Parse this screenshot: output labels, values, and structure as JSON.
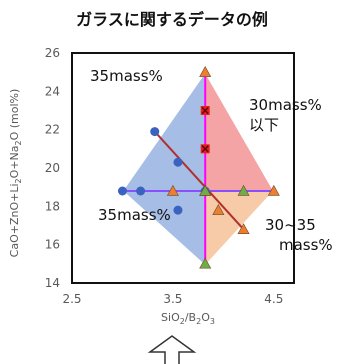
{
  "chart_data": {
    "type": "scatter",
    "title": "ガラスに関するデータの例",
    "xlabel": "SiO2/B2O3",
    "ylabel": "CaO+ZnO+Li2O+Na2O (mol%)",
    "xlim": [
      2.5,
      4.7
    ],
    "ylim": [
      14,
      26
    ],
    "x_ticks": [
      "2.5",
      "3.5",
      "4.5"
    ],
    "y_ticks": [
      "14",
      "16",
      "18",
      "20",
      "22",
      "24",
      "26"
    ],
    "grid": false,
    "annotations": [
      {
        "lines": [
          "35mass%"
        ]
      },
      {
        "lines": [
          "30mass%",
          "以下"
        ]
      },
      {
        "lines": [
          "35mass%"
        ]
      },
      {
        "lines": [
          "30~35",
          "mass%"
        ]
      }
    ],
    "regions": [
      {
        "color": "#a6bde6",
        "polygon": [
          [
            3.82,
            25.0
          ],
          [
            3.82,
            18.8
          ],
          [
            3.82,
            14.9
          ],
          [
            3.0,
            18.8
          ]
        ]
      },
      {
        "color": "#f4a4a4",
        "polygon": [
          [
            3.82,
            25.0
          ],
          [
            4.5,
            18.8
          ],
          [
            3.82,
            18.8
          ]
        ]
      },
      {
        "color": "#f7cba8",
        "polygon": [
          [
            3.82,
            18.8
          ],
          [
            4.5,
            18.8
          ],
          [
            3.82,
            14.9
          ]
        ]
      }
    ],
    "series": [
      {
        "marker": "circle",
        "color": "#3a63c0",
        "line_color": "#6a5acd",
        "points": [
          [
            3.0,
            18.8
          ],
          [
            3.18,
            18.8
          ],
          [
            3.32,
            21.9
          ],
          [
            3.55,
            20.3
          ],
          [
            3.55,
            17.8
          ],
          [
            3.82,
            18.8
          ]
        ]
      },
      {
        "marker": "triangle",
        "color": "#ed7d31",
        "line_color": "#a63a3a",
        "points": [
          [
            3.82,
            25.0
          ],
          [
            3.82,
            18.8
          ],
          [
            3.95,
            17.8
          ],
          [
            4.2,
            16.8
          ],
          [
            3.5,
            18.8
          ],
          [
            4.5,
            18.8
          ]
        ]
      },
      {
        "marker": "triangle",
        "color": "#70ad47",
        "line_color": "#ff00ff",
        "points": [
          [
            3.82,
            18.8
          ],
          [
            4.2,
            18.8
          ],
          [
            3.82,
            15.0
          ]
        ]
      },
      {
        "marker": "square-x",
        "color": "#e02020",
        "points": [
          [
            3.82,
            23.0
          ],
          [
            3.82,
            21.0
          ]
        ]
      }
    ],
    "lines": [
      {
        "color": "#ff00ff",
        "points": [
          [
            3.82,
            25.0
          ],
          [
            3.82,
            14.9
          ]
        ]
      },
      {
        "color": "#8a4fff",
        "points": [
          [
            3.0,
            18.8
          ],
          [
            4.5,
            18.8
          ]
        ]
      },
      {
        "color": "#b03030",
        "points": [
          [
            3.32,
            21.9
          ],
          [
            4.2,
            16.8
          ]
        ]
      }
    ]
  }
}
